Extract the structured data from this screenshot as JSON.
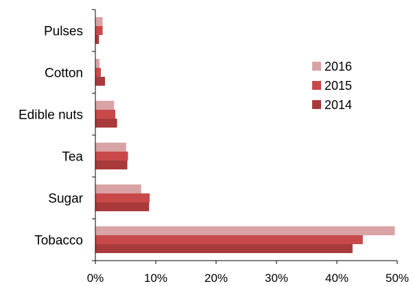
{
  "chart_data": {
    "type": "bar",
    "orientation": "horizontal",
    "categories": [
      "Pulses",
      "Cotton",
      "Edible nuts",
      "Tea",
      "Sugar",
      "Tobacco"
    ],
    "series": [
      {
        "name": "2016",
        "color": "#d9a3a5",
        "values": [
          1.2,
          0.7,
          3.1,
          5.1,
          7.6,
          49.6
        ]
      },
      {
        "name": "2015",
        "color": "#c9494b",
        "values": [
          1.2,
          0.9,
          3.3,
          5.4,
          9.0,
          44.3
        ]
      },
      {
        "name": "2014",
        "color": "#a83a3c",
        "values": [
          0.6,
          1.6,
          3.6,
          5.3,
          8.9,
          42.6
        ]
      }
    ],
    "xlim": [
      0,
      50
    ],
    "x_ticks": [
      0,
      10,
      20,
      30,
      40,
      50
    ],
    "x_tick_labels": [
      "0%",
      "10%",
      "20%",
      "30%",
      "40%",
      "50%"
    ],
    "title": "",
    "xlabel": "",
    "ylabel": "",
    "grid": false,
    "legend_position": "top-right",
    "legend_order": [
      "2016",
      "2015",
      "2014"
    ]
  }
}
